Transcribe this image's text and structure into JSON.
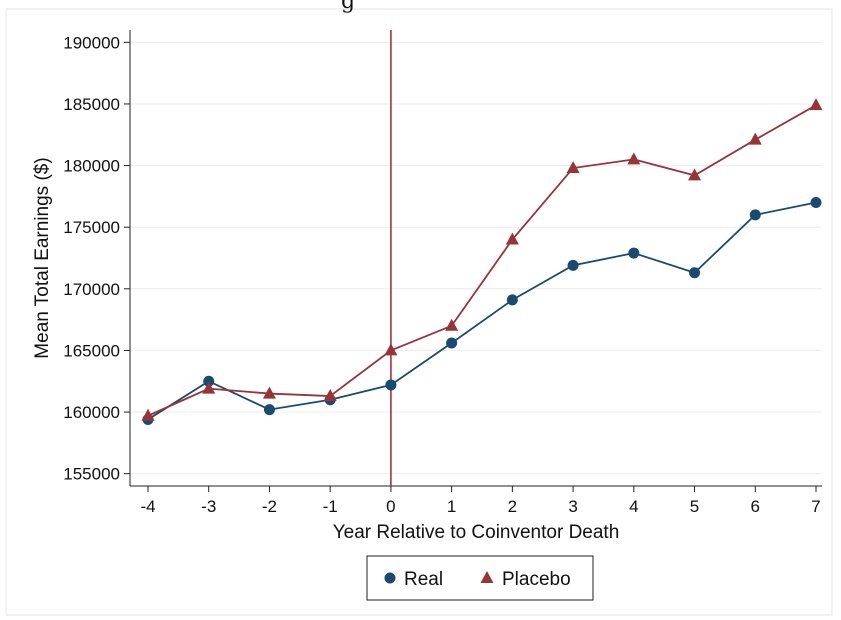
{
  "chart_data": {
    "type": "line",
    "title": "g",
    "xlabel": "Year Relative to Coinventor Death",
    "ylabel": "Mean Total Earnings ($)",
    "x": [
      -4,
      -3,
      -2,
      -1,
      0,
      1,
      2,
      3,
      4,
      5,
      6,
      7
    ],
    "x_tick_labels": [
      "-4",
      "-3",
      "-2",
      "-1",
      "0",
      "1",
      "2",
      "3",
      "4",
      "5",
      "6",
      "7"
    ],
    "y_ticks": [
      155000,
      160000,
      165000,
      170000,
      175000,
      180000,
      185000,
      190000
    ],
    "y_tick_labels": [
      "155000",
      "160000",
      "165000",
      "170000",
      "175000",
      "180000",
      "185000",
      "190000"
    ],
    "xlim": [
      -4,
      7
    ],
    "ylim": [
      154000,
      191000
    ],
    "grid": "horizontal",
    "reference_line_x": 0,
    "reference_line_color": "#a8323a",
    "legend_position": "bottom",
    "series": [
      {
        "name": "Real",
        "marker": "circle",
        "color": "#1a4a72",
        "values": [
          159400,
          162500,
          160200,
          161000,
          162200,
          165600,
          169100,
          171900,
          172900,
          171300,
          176000,
          177000
        ]
      },
      {
        "name": "Placebo",
        "marker": "triangle",
        "color": "#973437",
        "values": [
          159700,
          161900,
          161500,
          161300,
          165000,
          167000,
          174000,
          179800,
          180500,
          179200,
          182100,
          184900
        ]
      }
    ]
  }
}
